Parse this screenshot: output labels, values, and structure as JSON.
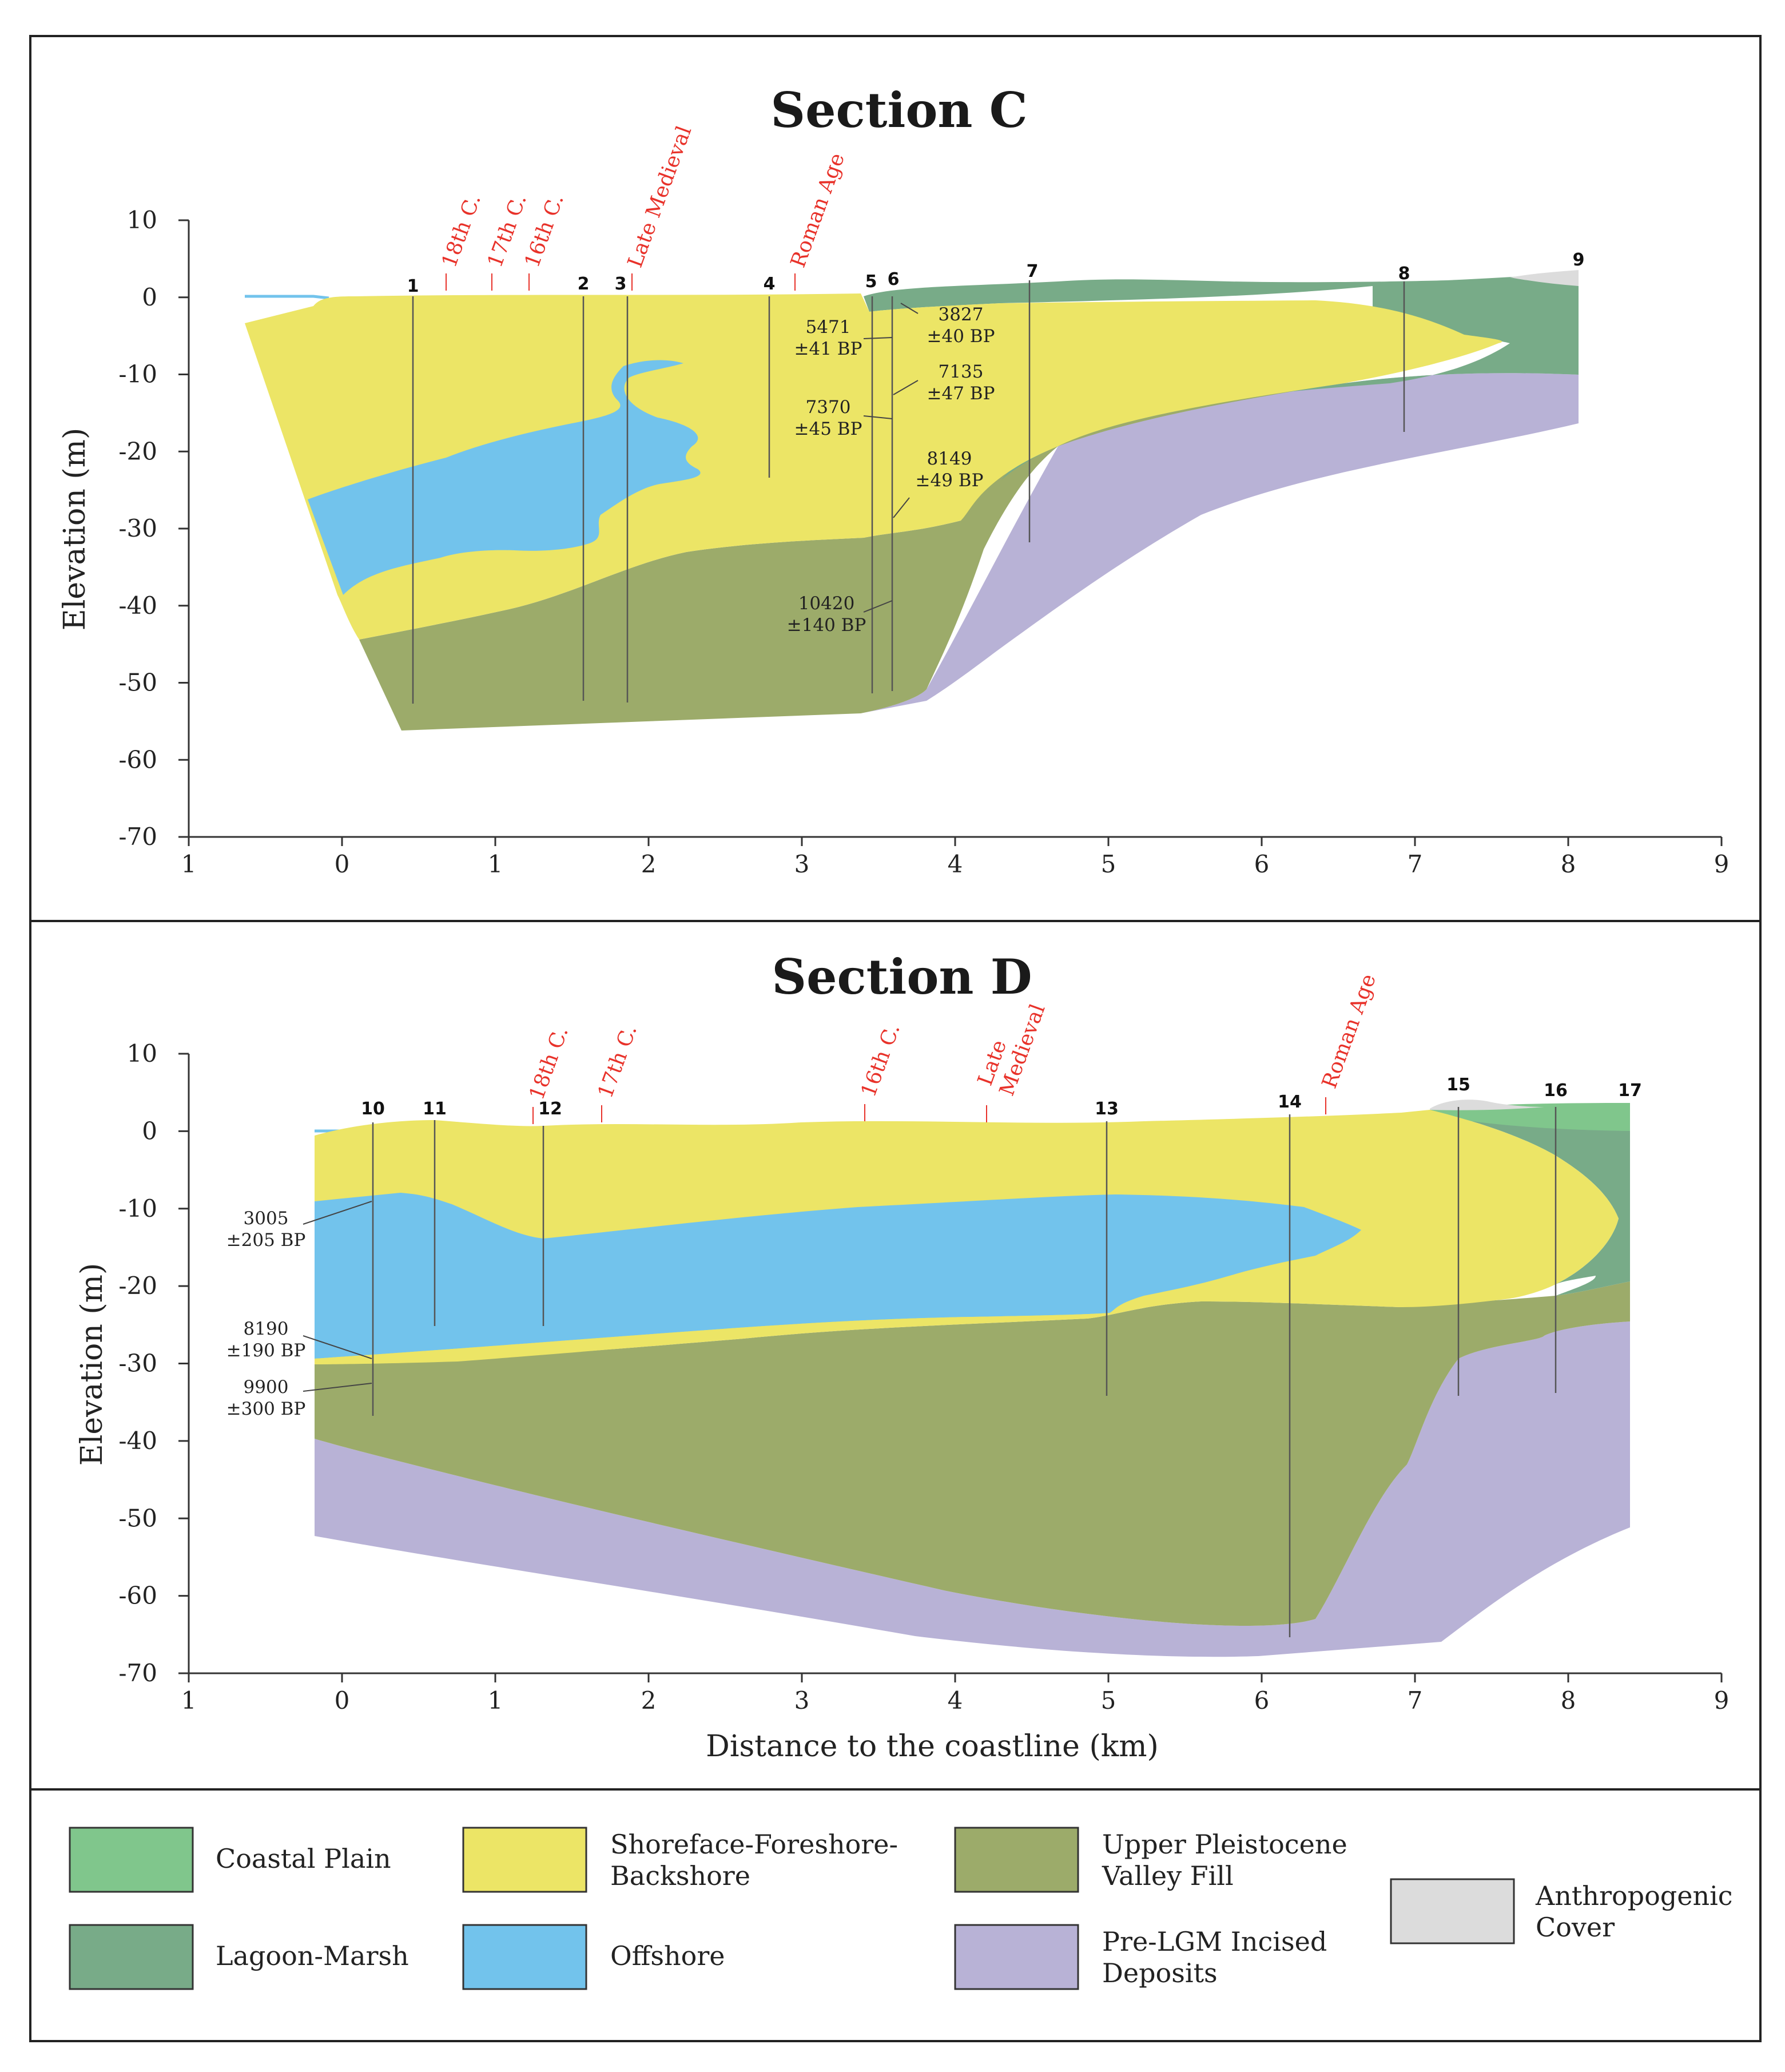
{
  "colors": {
    "coastal_plain": "#80c68c",
    "lagoon_marsh": "#78ab88",
    "shoreface": "#ece566",
    "offshore": "#72c3ec",
    "valley_fill": "#9cab6a",
    "pre_lgm": "#b8b2d6",
    "anthropogenic": "#dcdcdc",
    "historic": "#e8322a"
  },
  "axes": {
    "x_ticks": [
      "1",
      "0",
      "1",
      "2",
      "3",
      "4",
      "5",
      "6",
      "7",
      "8",
      "9"
    ],
    "y_ticks": [
      "10",
      "0",
      "-10",
      "-20",
      "-30",
      "-40",
      "-50",
      "-60",
      "-70"
    ],
    "y_label": "Elevation (m)",
    "x_label": "Distance to the coastline (km)"
  },
  "section_c": {
    "title": "Section C",
    "boreholes": [
      "1",
      "2",
      "3",
      "4",
      "5",
      "6",
      "7",
      "8",
      "9"
    ],
    "historic": [
      "18th C.",
      "17th C.",
      "16th C.",
      "Late Medieval",
      "Roman Age"
    ],
    "dates": [
      {
        "value": "5471",
        "error": "±41 BP"
      },
      {
        "value": "3827",
        "error": "±40 BP"
      },
      {
        "value": "7135",
        "error": "±47 BP"
      },
      {
        "value": "7370",
        "error": "±45 BP"
      },
      {
        "value": "8149",
        "error": "±49 BP"
      },
      {
        "value": "10420",
        "error": "±140 BP"
      }
    ]
  },
  "section_d": {
    "title": "Section D",
    "boreholes": [
      "10",
      "11",
      "12",
      "13",
      "14",
      "15",
      "16",
      "17"
    ],
    "historic": [
      "18th C.",
      "17th C.",
      "16th C.",
      "Late",
      "Medieval",
      "Roman Age"
    ],
    "dates": [
      {
        "value": "3005",
        "error": "±205 BP"
      },
      {
        "value": "8190",
        "error": "±190 BP"
      },
      {
        "value": "9900",
        "error": "±300 BP"
      }
    ]
  },
  "legend": {
    "coastal_plain": "Coastal Plain",
    "lagoon_marsh": "Lagoon-Marsh",
    "shoreface_line1": "Shoreface-Foreshore-",
    "shoreface_line2": "Backshore",
    "offshore": "Offshore",
    "valley_fill_line1": "Upper Pleistocene",
    "valley_fill_line2": "Valley Fill",
    "pre_lgm_line1": "Pre-LGM Incised",
    "pre_lgm_line2": "Deposits",
    "anthropogenic_line1": "Anthropogenic",
    "anthropogenic_line2": "Cover"
  }
}
